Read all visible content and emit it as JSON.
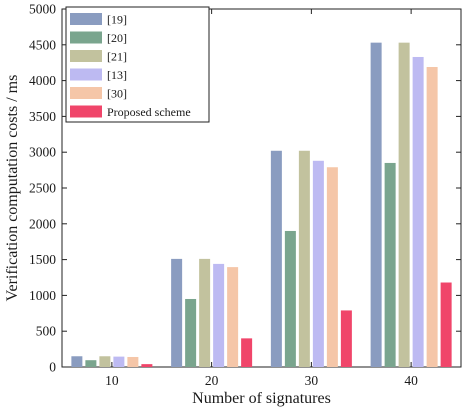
{
  "chart_data": {
    "type": "bar",
    "categories": [
      "10",
      "20",
      "30",
      "40"
    ],
    "series": [
      {
        "name": "[19]",
        "color": "#8a9cc0",
        "values": [
          150,
          1510,
          3020,
          4530
        ]
      },
      {
        "name": "[20]",
        "color": "#7aa58e",
        "values": [
          95,
          950,
          1900,
          2850
        ]
      },
      {
        "name": "[21]",
        "color": "#c2c29e",
        "values": [
          150,
          1510,
          3020,
          4530
        ]
      },
      {
        "name": "[13]",
        "color": "#bdbaf2",
        "values": [
          145,
          1440,
          2880,
          4330
        ]
      },
      {
        "name": "[30]",
        "color": "#f5c6a8",
        "values": [
          140,
          1395,
          2790,
          4190
        ]
      },
      {
        "name": "Proposed scheme",
        "color": "#f0456a",
        "values": [
          40,
          400,
          790,
          1180
        ]
      }
    ],
    "xlabel": "Number of signatures",
    "ylabel": "Verification computation costs / ms",
    "ylim": [
      0,
      5000
    ],
    "yticks": [
      0,
      500,
      1000,
      1500,
      2000,
      2500,
      3000,
      3500,
      4000,
      4500,
      5000
    ],
    "grid": false,
    "legend_position": "top-left"
  }
}
